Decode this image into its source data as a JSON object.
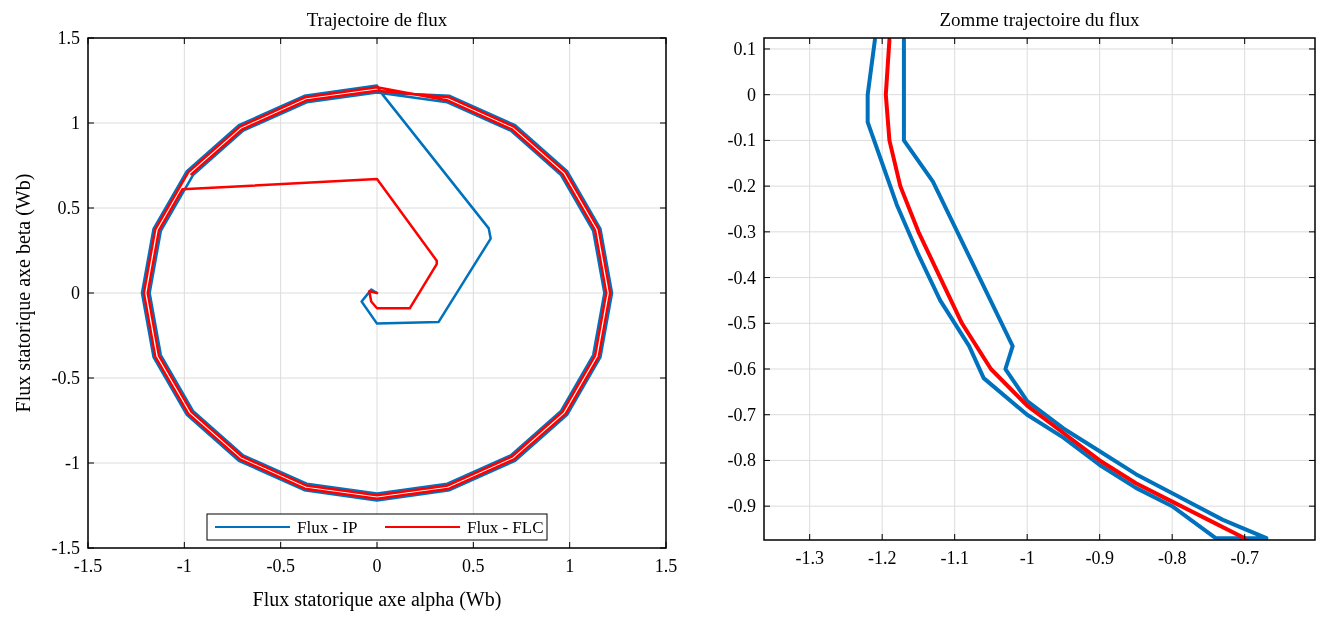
{
  "chart_data": [
    {
      "type": "line",
      "title": "Trajectoire de flux",
      "xlabel": "Flux statorique axe alpha (Wb)",
      "ylabel": "Flux statorique axe beta (Wb)",
      "xlim": [
        -1.5,
        1.5
      ],
      "ylim": [
        -1.5,
        1.5
      ],
      "xticks": [
        -1.5,
        -1,
        -0.5,
        0,
        0.5,
        1,
        1.5
      ],
      "yticks": [
        -1.5,
        -1,
        -0.5,
        0,
        0.5,
        1,
        1.5
      ],
      "grid": true,
      "legend": "bottom",
      "series": [
        {
          "name": "Flux - IP",
          "color": "#0072bd",
          "x": [
            0,
            -0.03,
            -0.08,
            0,
            0.32,
            0.59,
            0.58,
            0.02,
            0,
            -0.377,
            -0.717,
            -0.987,
            -1.16,
            -1.22,
            -1.16,
            -0.987,
            -0.717,
            -0.377,
            0,
            0.377,
            0.717,
            0.987,
            1.16,
            1.22,
            1.16,
            0.987,
            0.717,
            0.377,
            0,
            -0.365,
            -0.694,
            -0.955,
            -1.122,
            -1.18,
            -1.122,
            -0.955,
            -0.694,
            -0.365,
            0,
            0.365,
            0.694,
            0.955,
            1.122,
            1.18,
            1.122,
            0.955,
            0.694,
            0.365,
            0
          ],
          "values": [
            0,
            0.02,
            -0.05,
            -0.18,
            -0.17,
            0.32,
            0.38,
            1.18,
            1.22,
            1.16,
            0.987,
            0.717,
            0.377,
            0,
            -0.377,
            -0.717,
            -0.987,
            -1.16,
            -1.22,
            -1.16,
            -0.987,
            -0.717,
            -0.377,
            0,
            0.377,
            0.717,
            0.987,
            1.16,
            1.18,
            1.122,
            0.955,
            0.694,
            0.365,
            0,
            -0.365,
            -0.694,
            -0.955,
            -1.122,
            -1.18,
            -1.122,
            -0.955,
            -0.694,
            -0.365,
            0,
            0.365,
            0.694,
            0.955,
            1.122,
            1.18
          ]
        },
        {
          "name": "Flux - FLC",
          "color": "#ff0000",
          "x": [
            0,
            -0.04,
            -0.03,
            0,
            0.17,
            0.31,
            0.31,
            0,
            -1.01,
            -1.132,
            -1.19,
            -1.132,
            -0.963,
            -0.699,
            -0.368,
            0,
            0.368,
            0.699,
            0.963,
            1.132,
            1.19,
            1.132,
            0.963,
            0.699,
            0.368,
            0,
            -0.374,
            -0.711,
            -0.979,
            -1.151,
            -1.21,
            -1.151,
            -0.979,
            -0.711,
            -0.374,
            0,
            0.374,
            0.711,
            0.979,
            1.151,
            1.21,
            1.151,
            0.979,
            0.711,
            0.374,
            0,
            -0.368,
            -0.699,
            -0.963
          ],
          "values": [
            0,
            0.01,
            -0.05,
            -0.09,
            -0.09,
            0.17,
            0.19,
            0.67,
            0.61,
            0.368,
            0,
            -0.368,
            -0.699,
            -0.963,
            -1.132,
            -1.19,
            -1.132,
            -0.963,
            -0.699,
            -0.368,
            0,
            0.368,
            0.699,
            0.963,
            1.132,
            1.21,
            1.151,
            0.979,
            0.711,
            0.374,
            0,
            -0.374,
            -0.711,
            -0.979,
            -1.151,
            -1.21,
            -1.151,
            -0.979,
            -0.711,
            -0.374,
            0,
            0.374,
            0.711,
            0.979,
            1.151,
            1.19,
            1.132,
            0.963,
            0.699
          ]
        }
      ]
    },
    {
      "type": "line",
      "title": "Zomme trajectoire du flux",
      "xlim": [
        -1.363,
        -0.603
      ],
      "ylim": [
        -0.974,
        0.124
      ],
      "xticks": [
        -1.3,
        -1.2,
        -1.1,
        -1,
        -0.9,
        -0.8,
        -0.7
      ],
      "yticks": [
        -0.9,
        -0.8,
        -0.7,
        -0.6,
        -0.5,
        -0.4,
        -0.3,
        -0.2,
        -0.1,
        0,
        0.1
      ],
      "grid": true,
      "series": [
        {
          "color": "#0072bd",
          "x": [
            -1.21,
            -1.22,
            -1.22,
            -1.2,
            -1.18,
            -1.15,
            -1.12,
            -1.08,
            -1.06,
            -1.0,
            -0.95,
            -0.9,
            -0.85,
            -0.8,
            -0.74,
            -0.67,
            -0.73,
            -0.79,
            -0.85,
            -0.9,
            -0.95,
            -1.0,
            -1.03,
            -1.02,
            -1.13,
            -1.17,
            -1.17,
            -1.17
          ],
          "values": [
            0.12,
            0,
            -0.06,
            -0.15,
            -0.24,
            -0.35,
            -0.45,
            -0.55,
            -0.62,
            -0.7,
            -0.75,
            -0.81,
            -0.86,
            -0.9,
            -0.97,
            -0.97,
            -0.93,
            -0.88,
            -0.83,
            -0.78,
            -0.73,
            -0.67,
            -0.6,
            -0.55,
            -0.19,
            -0.1,
            0,
            0.12
          ]
        },
        {
          "color": "#ff0000",
          "x": [
            -1.19,
            -1.195,
            -1.19,
            -1.175,
            -1.15,
            -1.12,
            -1.09,
            -1.05,
            -1.0,
            -0.95,
            -0.9,
            -0.85,
            -0.8,
            -0.75,
            -0.7
          ],
          "values": [
            0.12,
            0,
            -0.1,
            -0.2,
            -0.3,
            -0.4,
            -0.5,
            -0.6,
            -0.68,
            -0.74,
            -0.8,
            -0.85,
            -0.89,
            -0.93,
            -0.97
          ]
        }
      ]
    }
  ]
}
